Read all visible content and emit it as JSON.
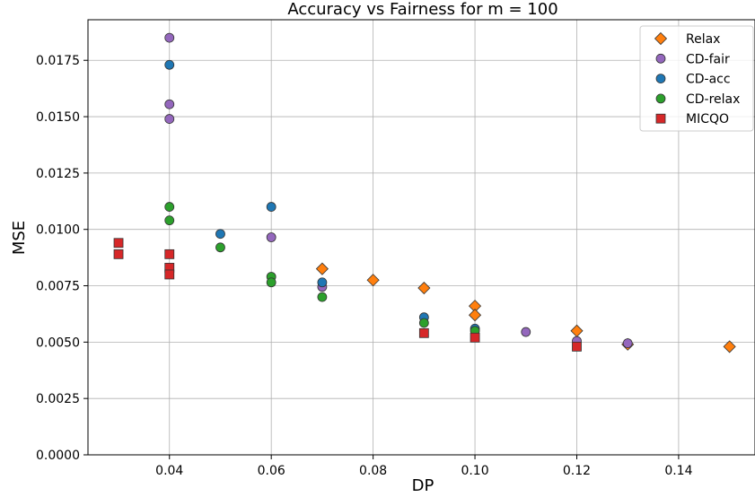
{
  "chart_data": {
    "type": "scatter",
    "title": "Accuracy vs Fairness for m = 100",
    "xlabel": "DP",
    "ylabel": "MSE",
    "xlim": [
      0.024,
      0.155
    ],
    "ylim": [
      0.0,
      0.0193
    ],
    "xticks": [
      "0.04",
      "0.06",
      "0.08",
      "0.10",
      "0.12",
      "0.14"
    ],
    "xtick_values": [
      0.04,
      0.06,
      0.08,
      0.1,
      0.12,
      0.14
    ],
    "yticks": [
      "0.0000",
      "0.0025",
      "0.0050",
      "0.0075",
      "0.0100",
      "0.0125",
      "0.0150",
      "0.0175"
    ],
    "ytick_values": [
      0.0,
      0.0025,
      0.005,
      0.0075,
      0.01,
      0.0125,
      0.015,
      0.0175
    ],
    "grid": true,
    "legend_position": "top-right",
    "series": [
      {
        "name": "Relax",
        "marker": "diamond",
        "color": "#ff7f0e",
        "points": [
          [
            0.07,
            0.00825
          ],
          [
            0.08,
            0.00775
          ],
          [
            0.09,
            0.0074
          ],
          [
            0.1,
            0.0066
          ],
          [
            0.1,
            0.0062
          ],
          [
            0.12,
            0.0055
          ],
          [
            0.13,
            0.0049
          ],
          [
            0.15,
            0.0048
          ]
        ]
      },
      {
        "name": "CD-fair",
        "marker": "circle",
        "color": "#9467bd",
        "points": [
          [
            0.04,
            0.0185
          ],
          [
            0.04,
            0.01555
          ],
          [
            0.04,
            0.0149
          ],
          [
            0.06,
            0.00965
          ],
          [
            0.07,
            0.00745
          ],
          [
            0.11,
            0.00545
          ],
          [
            0.12,
            0.00505
          ],
          [
            0.13,
            0.00495
          ]
        ]
      },
      {
        "name": "CD-acc",
        "marker": "circle",
        "color": "#1f77b4",
        "points": [
          [
            0.04,
            0.0173
          ],
          [
            0.05,
            0.0098
          ],
          [
            0.06,
            0.011
          ],
          [
            0.07,
            0.00765
          ],
          [
            0.09,
            0.0061
          ],
          [
            0.1,
            0.0056
          ]
        ]
      },
      {
        "name": "CD-relax",
        "marker": "circle",
        "color": "#2ca02c",
        "points": [
          [
            0.04,
            0.011
          ],
          [
            0.04,
            0.0104
          ],
          [
            0.05,
            0.0092
          ],
          [
            0.06,
            0.0079
          ],
          [
            0.06,
            0.00765
          ],
          [
            0.07,
            0.007
          ],
          [
            0.09,
            0.00585
          ],
          [
            0.1,
            0.0055
          ]
        ]
      },
      {
        "name": "MICQO",
        "marker": "square",
        "color": "#d62728",
        "points": [
          [
            0.03,
            0.0094
          ],
          [
            0.03,
            0.0089
          ],
          [
            0.04,
            0.0089
          ],
          [
            0.04,
            0.0083
          ],
          [
            0.04,
            0.008
          ],
          [
            0.09,
            0.0054
          ],
          [
            0.1,
            0.0052
          ],
          [
            0.12,
            0.0048
          ]
        ]
      }
    ]
  }
}
